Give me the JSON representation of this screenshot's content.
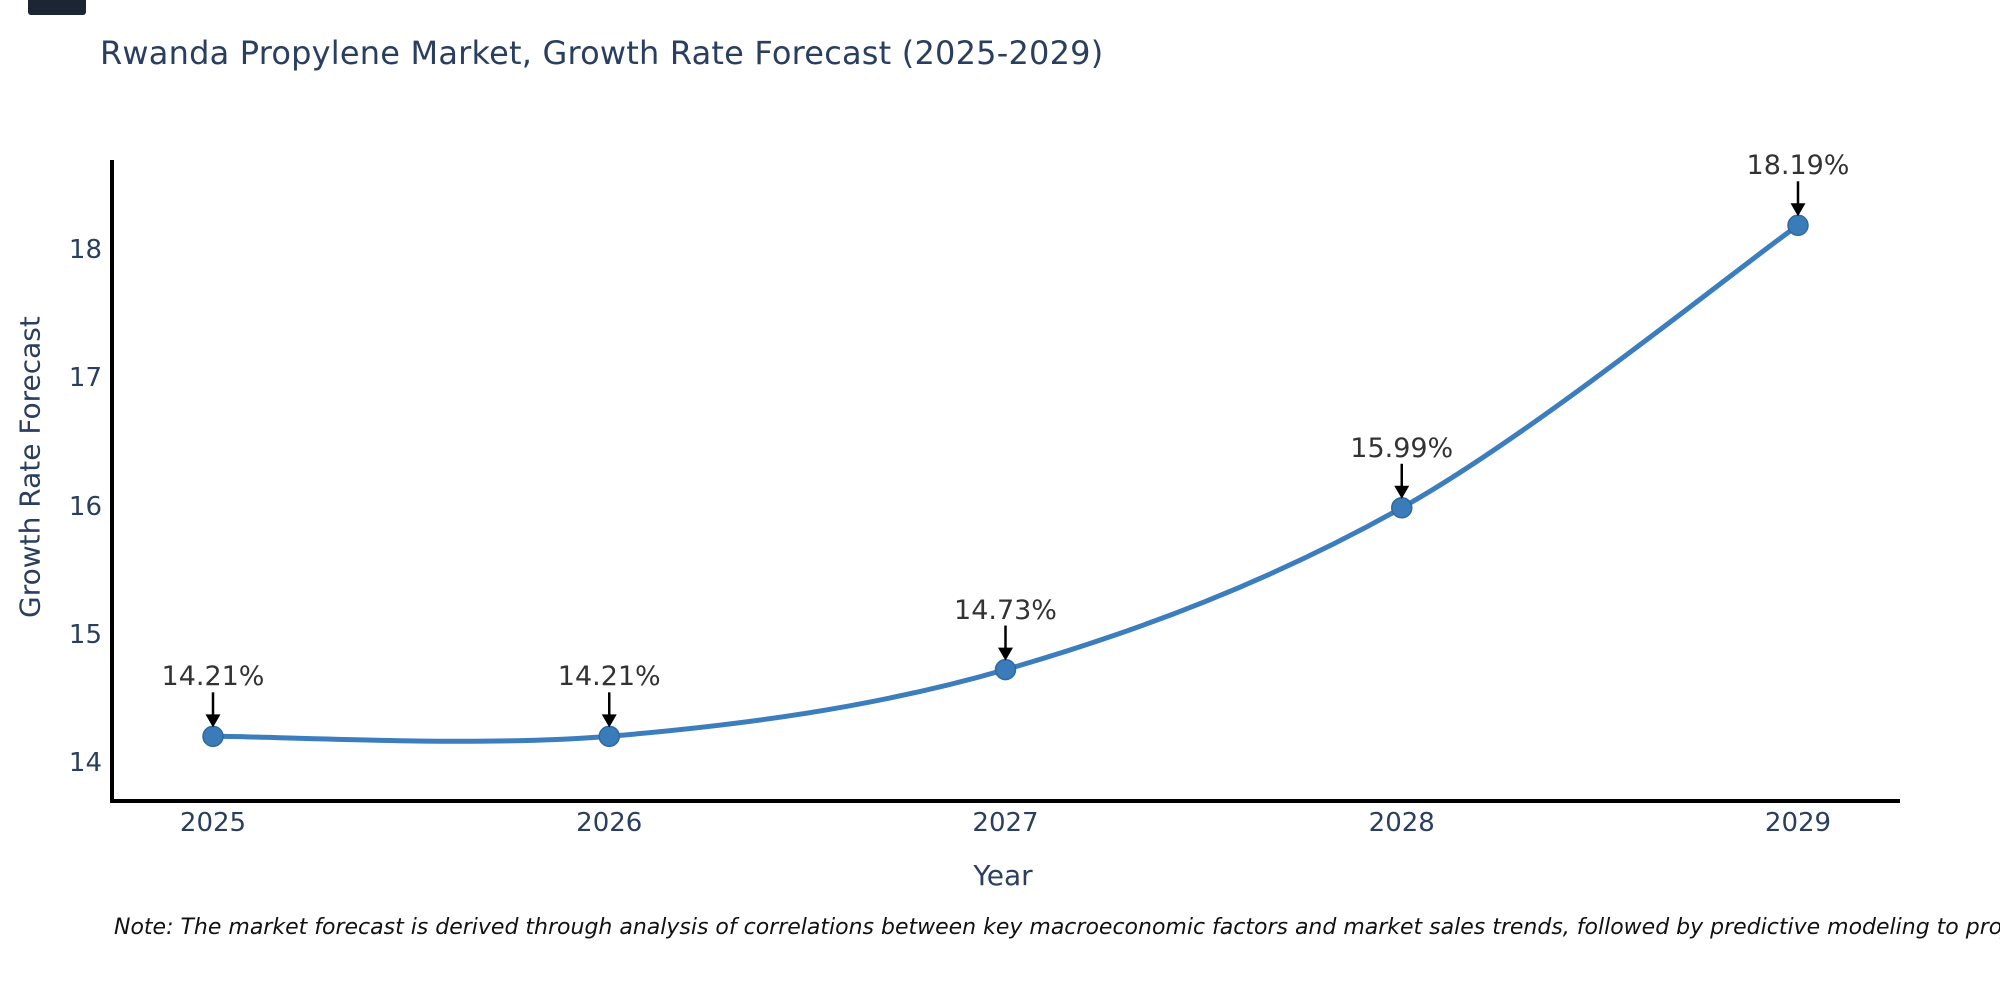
{
  "title": "Rwanda Propylene Market, Growth Rate Forecast (2025-2029)",
  "note": "Note: The market forecast is derived through analysis of correlations between key macroeconomic factors and market sales trends, followed by predictive modeling to project future sales",
  "colors": {
    "line": "#3b7dbd",
    "marker_fill": "#3a7cba",
    "marker_edge": "#2f699f",
    "axis": "#000000",
    "chart_text": "#2a3f5f",
    "annotation_text": "#333333",
    "note_text": "#111111"
  },
  "chart_data": {
    "type": "line",
    "line_shape": "spline",
    "marker": "circle",
    "title": "Rwanda Propylene Market, Growth Rate Forecast (2025-2029)",
    "xlabel": "Year",
    "ylabel": "Growth Rate Forecast",
    "x": [
      2025,
      2026,
      2027,
      2028,
      2029
    ],
    "values": [
      14.21,
      14.21,
      14.73,
      15.99,
      18.19
    ],
    "point_labels": [
      "14.21%",
      "14.21%",
      "14.73%",
      "15.99%",
      "18.19%"
    ],
    "yticks": [
      14,
      15,
      16,
      17,
      18
    ],
    "ylim": [
      13.71,
      18.71
    ],
    "grid": false,
    "legend": "none",
    "annotations": "value labels with downward arrows above each point"
  }
}
